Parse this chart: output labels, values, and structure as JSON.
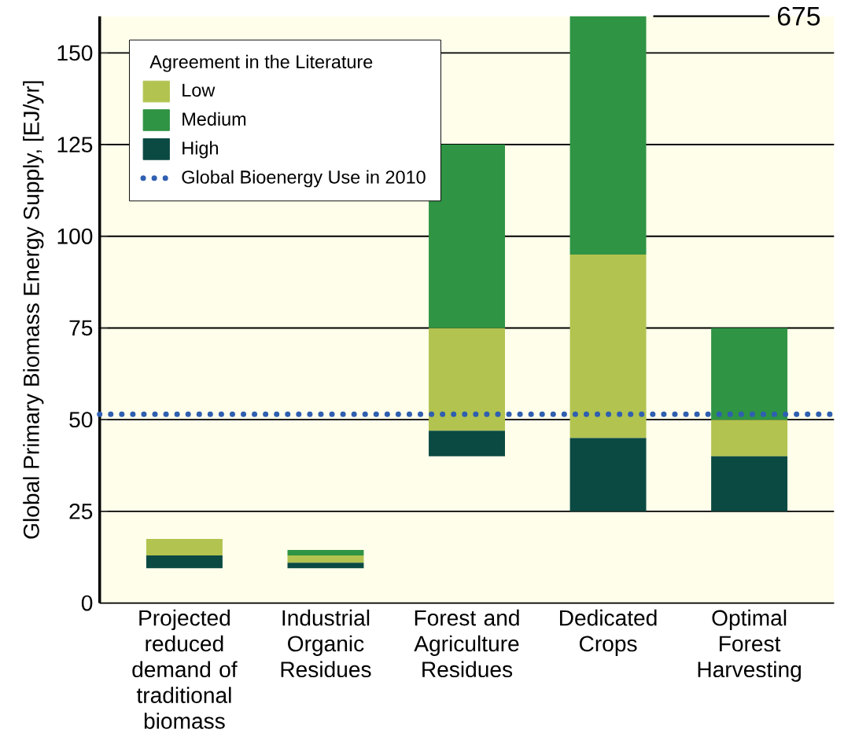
{
  "chart_data": {
    "type": "bar",
    "ylabel": "Global Primary Biomass Energy Supply, [EJ/yr]",
    "legend_title": "Agreement in the Literature",
    "categories": [
      "Projected reduced demand of traditional biomass",
      "Industrial Organic Residues",
      "Forest and Agriculture Residues",
      "Dedicated Crops",
      "Optimal Forest Harvesting"
    ],
    "series": [
      {
        "name": "Low",
        "color": "#b2c34f",
        "base": [
          13,
          11,
          47,
          45,
          40
        ],
        "values": [
          4.5,
          2,
          28,
          50,
          10
        ]
      },
      {
        "name": "Medium",
        "color": "#2f9444",
        "base": [
          null,
          13,
          75,
          95,
          50
        ],
        "values": [
          null,
          1.5,
          50,
          65,
          25
        ]
      },
      {
        "name": "High",
        "color": "#0b4a42",
        "base": [
          9.5,
          9.5,
          40,
          25,
          25
        ],
        "values": [
          3.5,
          1.5,
          7,
          20,
          15
        ]
      }
    ],
    "ylim": [
      0,
      160
    ],
    "yticks": [
      0,
      25,
      50,
      75,
      100,
      125,
      150
    ],
    "grid": "y",
    "legend": "top left",
    "ref_lines": [
      {
        "axis": "y",
        "value": 51.5,
        "label": "Global Bioenergy Use in 2010",
        "color": "#2f5fb0",
        "line_style": "dotted"
      }
    ],
    "annotations": [
      "675"
    ]
  }
}
